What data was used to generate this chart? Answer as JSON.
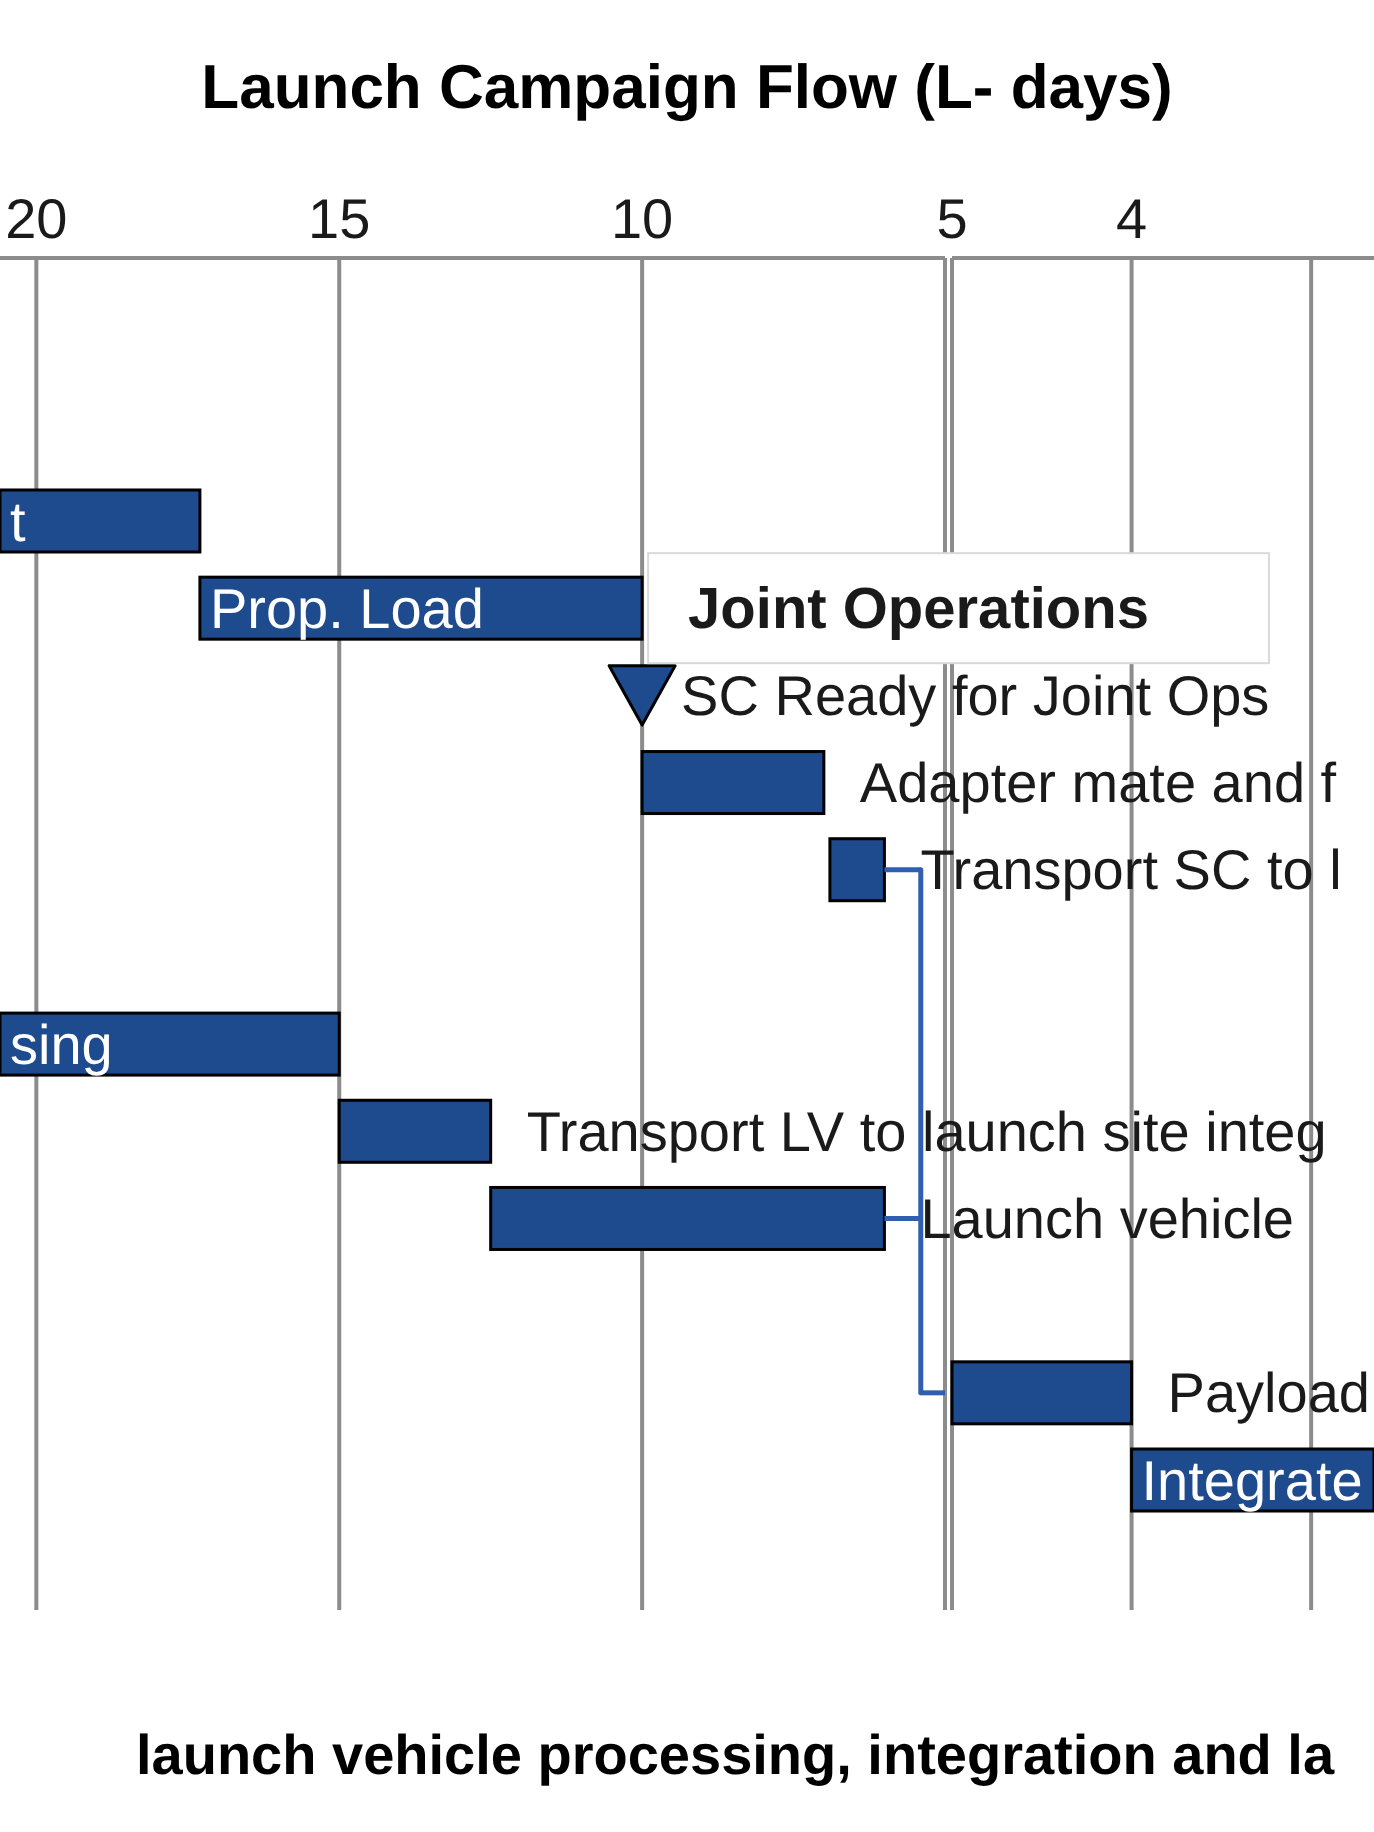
{
  "chart_data": [
    {
      "type": "bar",
      "orientation": "horizontal",
      "title": "Launch Campaign Flow (L- days)",
      "categories": [
        "t",
        "Prop. Load",
        "SC Ready for Joint Ops",
        "Adapter mate and f",
        "Transport SC to l",
        null,
        "sing",
        "Transport LV to launch site integ",
        "Launch vehicle",
        null,
        null,
        null
      ],
      "series": [
        {
          "color": "#1e4a8e",
          "base": [
            17.3,
            10,
            null,
            7,
            6,
            null,
            15,
            12.5,
            6,
            null,
            null,
            null
          ],
          "values": [
            3.3,
            7.3,
            null,
            3,
            0.9,
            null,
            5.6,
            2.5,
            6.5,
            null,
            null,
            null
          ]
        },
        {
          "type": "scatter",
          "marker": "triangle",
          "color": "#1e4a8e",
          "values": [
            null,
            null,
            10,
            null,
            null,
            null,
            null,
            null,
            null,
            null,
            null,
            null
          ]
        },
        {
          "type": "line",
          "color": "#2f5fae",
          "values": [
            null,
            null,
            null,
            null,
            5.4,
            5.4,
            5.4,
            5.4,
            5.4,
            5.4,
            5.4,
            null
          ],
          "errors": [
            null,
            null,
            null,
            null,
            [
              5.4,
              6
            ],
            null,
            null,
            null,
            [
              5.4,
              6
            ],
            null,
            [
              5,
              5.4
            ],
            null
          ]
        }
      ],
      "xlim": [
        20.6,
        5
      ],
      "xticks": [
        20,
        15,
        10,
        {
          "value": 5,
          "label": null
        }
      ],
      "grid": "x",
      "annotations": [
        {
          "text": "Joint Operations",
          "x": 10,
          "y": "Prop. Load"
        },
        "launch vehicle processing, integration and la"
      ]
    },
    {
      "type": "bar",
      "orientation": "horizontal",
      "categories": [
        null,
        null,
        null,
        null,
        null,
        null,
        null,
        null,
        null,
        null,
        "Payload",
        "Integrate"
      ],
      "series": [
        {
          "color": "#1e4a8e",
          "base": [
            null,
            null,
            null,
            null,
            null,
            null,
            null,
            null,
            null,
            null,
            4,
            2.65
          ],
          "values": [
            null,
            null,
            null,
            null,
            null,
            null,
            null,
            null,
            null,
            null,
            1,
            1.35
          ]
        }
      ],
      "xlim": [
        5,
        2.65
      ],
      "xticks": [
        5,
        4,
        {
          "value": 3,
          "label": null
        }
      ],
      "grid": "x"
    }
  ]
}
